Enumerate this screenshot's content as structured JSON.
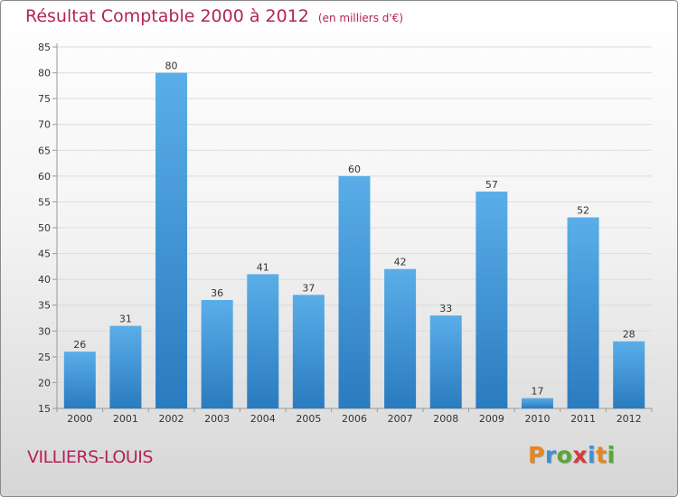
{
  "title": "Résultat Comptable 2000 à 2012",
  "subtitle": "(en milliers d'€)",
  "place": "VILLIERS-LOUIS",
  "logo": {
    "text": "Proxiti",
    "colors": [
      "#e8861c",
      "#3f8fd6",
      "#5aa832",
      "#d63a3a",
      "#3f8fd6",
      "#e8861c",
      "#5aa832"
    ]
  },
  "colors": {
    "title": "#b4235a",
    "bar_top": "#5aaee8",
    "bar_bottom": "#2a7bbf",
    "grid": "#dcdcdc",
    "axis": "#999999"
  },
  "chart_data": {
    "type": "bar",
    "title": "Résultat Comptable 2000 à 2012",
    "subtitle": "(en milliers d'€)",
    "xlabel": "",
    "ylabel": "",
    "categories": [
      "2000",
      "2001",
      "2002",
      "2003",
      "2004",
      "2005",
      "2006",
      "2007",
      "2008",
      "2009",
      "2010",
      "2011",
      "2012"
    ],
    "values": [
      26,
      31,
      80,
      36,
      41,
      37,
      60,
      42,
      33,
      57,
      17,
      52,
      28
    ],
    "ylim": [
      15,
      85
    ],
    "yticks": [
      15,
      20,
      25,
      30,
      35,
      40,
      45,
      50,
      55,
      60,
      65,
      70,
      75,
      80,
      85
    ],
    "grid": true
  }
}
